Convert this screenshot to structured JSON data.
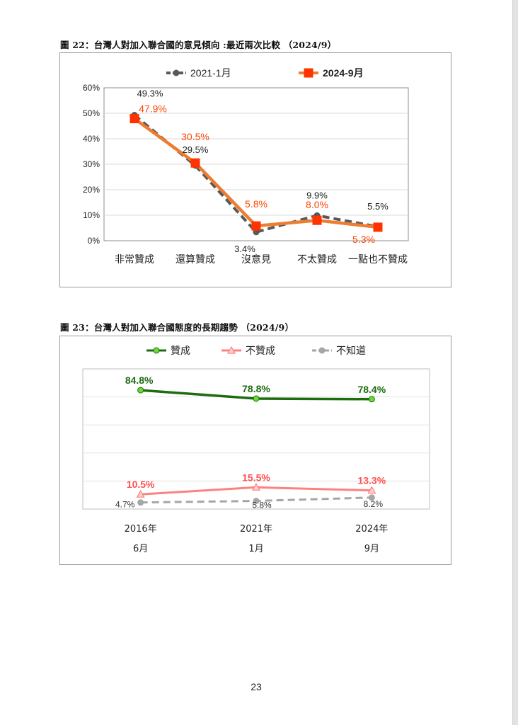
{
  "page": {
    "number": "23"
  },
  "figure22": {
    "title": "圖 22：台灣人對加入聯合國的意見傾向 :最近兩次比較 （2024/9）"
  },
  "figure23": {
    "title": "圖 23：台灣人對加入聯合國態度的長期趨勢 （2024/9）"
  },
  "chart_data": [
    {
      "type": "line",
      "title": "圖 22：台灣人對加入聯合國的意見傾向 :最近兩次比較 （2024/9）",
      "xlabel": "",
      "ylabel": "",
      "categories": [
        "非常贊成",
        "還算贊成",
        "沒意見",
        "不太贊成",
        "一點也不贊成"
      ],
      "ylim": [
        0,
        60
      ],
      "yticks": [
        "0%",
        "10%",
        "20%",
        "30%",
        "40%",
        "50%",
        "60%"
      ],
      "grid": true,
      "legend": "top",
      "series": [
        {
          "name": "2021-1月",
          "color": "#595959",
          "dashed": true,
          "marker": "circle",
          "values": [
            49.3,
            29.5,
            3.4,
            9.9,
            5.5
          ],
          "labels": [
            "49.3%",
            "29.5%",
            "3.4%",
            "9.9%",
            "5.5%"
          ]
        },
        {
          "name": "2024-9月",
          "color": "#ed7d31",
          "label_color": "#ff4500",
          "dashed": false,
          "marker": "square",
          "values": [
            47.9,
            30.5,
            5.8,
            8.0,
            5.3
          ],
          "labels": [
            "47.9%",
            "30.5%",
            "5.8%",
            "8.0%",
            "5.3%"
          ]
        }
      ]
    },
    {
      "type": "line",
      "title": "圖 23：台灣人對加入聯合國態度的長期趨勢 （2024/9）",
      "xlabel": "",
      "ylabel": "",
      "categories": [
        "2016年",
        "2021年",
        "2024年"
      ],
      "categories_line2": [
        "6月",
        "1月",
        "9月"
      ],
      "ylim": [
        0,
        100
      ],
      "grid": true,
      "legend": "top",
      "series": [
        {
          "name": "贊成",
          "color": "#1e6b10",
          "label_color": "#1e6b10",
          "dashed": false,
          "marker": "circle",
          "values": [
            84.8,
            78.8,
            78.4
          ],
          "labels": [
            "84.8%",
            "78.8%",
            "78.4%"
          ]
        },
        {
          "name": "不贊成",
          "color": "#ff8080",
          "label_color": "#ff5050",
          "dashed": false,
          "marker": "triangle",
          "values": [
            10.5,
            15.5,
            13.3
          ],
          "labels": [
            "10.5%",
            "15.5%",
            "13.3%"
          ]
        },
        {
          "name": "不知道",
          "color": "#a6a6a6",
          "label_color": "#333333",
          "dashed": true,
          "marker": "circle",
          "values": [
            4.7,
            5.8,
            8.2
          ],
          "labels": [
            "4.7%",
            "5.8%",
            "8.2%"
          ]
        }
      ]
    }
  ]
}
